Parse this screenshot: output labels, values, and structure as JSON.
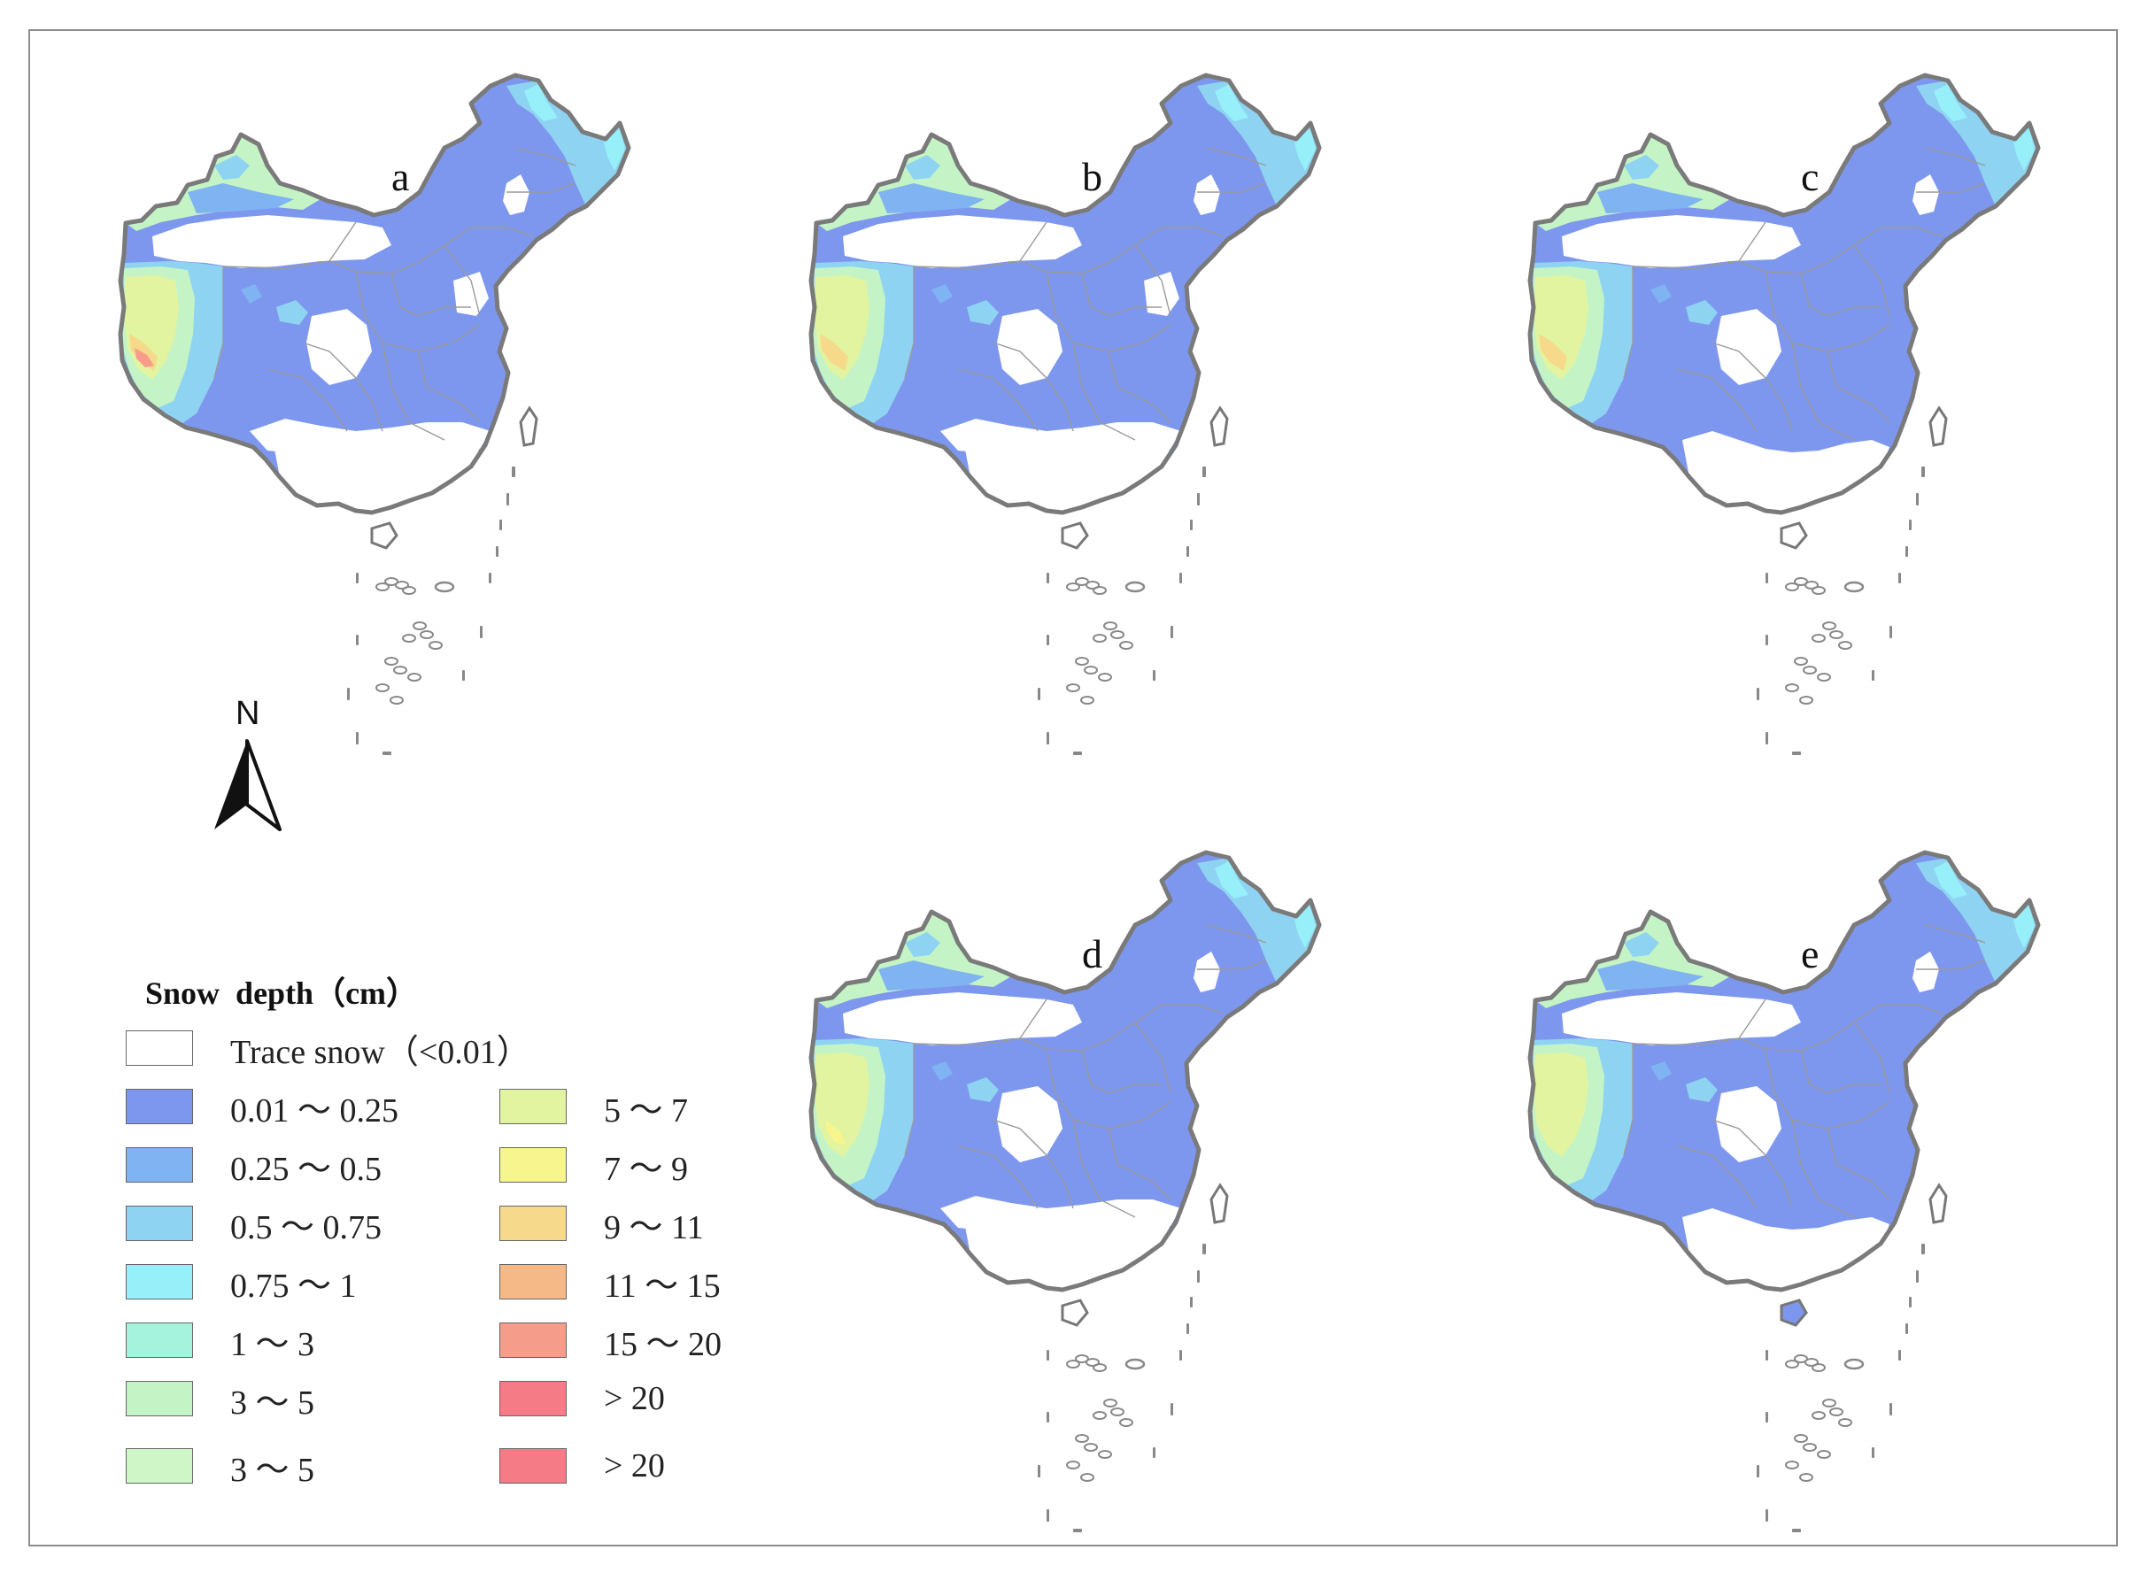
{
  "panels": [
    {
      "label": "a",
      "style": "a"
    },
    {
      "label": "b",
      "style": "b"
    },
    {
      "label": "c",
      "style": "c"
    },
    {
      "label": "d",
      "style": "d"
    },
    {
      "label": "e",
      "style": "e"
    }
  ],
  "north_arrow": {
    "label": "N"
  },
  "legend": {
    "title": "Snow  depth（cm）",
    "items": [
      {
        "label": "Trace snow（<0.01）",
        "color": "#ffffff"
      },
      {
        "label": "0.01 ～ 0.25",
        "color": "#7e97ee"
      },
      {
        "label": "0.25 ～ 0.5",
        "color": "#7fb3f2"
      },
      {
        "label": "0.5 ～ 0.75",
        "color": "#8ed3f2"
      },
      {
        "label": "0.75 ～ 1",
        "color": "#97effa"
      },
      {
        "label": "1 ～ 3",
        "color": "#a6f3dd"
      },
      {
        "label": "3 ～ 5",
        "color": "#c4f4c6"
      },
      {
        "label": "3 ～ 5",
        "color": "#cff6c6"
      },
      {
        "label": "5 ～ 7",
        "color": "#e2f4a0"
      },
      {
        "label": "7 ～ 9",
        "color": "#f7f58e"
      },
      {
        "label": "9 ～ 11",
        "color": "#f7d98b"
      },
      {
        "label": "11 ～ 15",
        "color": "#f5b887"
      },
      {
        "label": "15 ～ 20",
        "color": "#f59c8a"
      },
      {
        "label": "> 20",
        "color": "#f57b86"
      },
      {
        "label": "> 20",
        "color": "#f57b86"
      }
    ]
  }
}
